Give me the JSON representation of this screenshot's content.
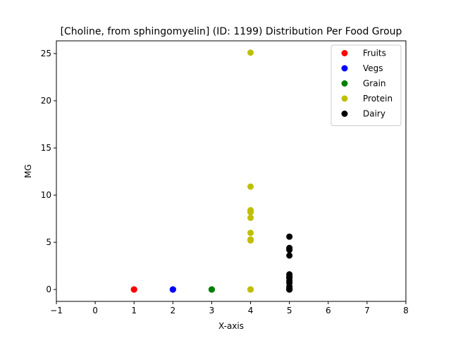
{
  "chart_data": {
    "type": "scatter",
    "title": "[Choline, from sphingomyelin] (ID: 1199) Distribution Per Food Group",
    "xlabel": "X-axis",
    "ylabel": "MG",
    "xlim": [
      -1,
      8
    ],
    "ylim": [
      -1.26,
      26.35
    ],
    "xticks": [
      -1,
      0,
      1,
      2,
      3,
      4,
      5,
      6,
      7,
      8
    ],
    "yticks": [
      0,
      5,
      10,
      15,
      20,
      25
    ],
    "grid": false,
    "legend_position": "top-right",
    "series": [
      {
        "name": "Fruits",
        "color": "#ff0000",
        "x": [
          1,
          1,
          1
        ],
        "y": [
          0,
          0,
          0
        ]
      },
      {
        "name": "Vegs",
        "color": "#0000ff",
        "x": [
          2,
          2,
          2
        ],
        "y": [
          0,
          0,
          0
        ]
      },
      {
        "name": "Grain",
        "color": "#008000",
        "x": [
          3,
          3,
          3
        ],
        "y": [
          0,
          0,
          0
        ]
      },
      {
        "name": "Protein",
        "color": "#bfbf00",
        "x": [
          4,
          4,
          4,
          4,
          4,
          4,
          4,
          4,
          4,
          4,
          4
        ],
        "y": [
          25.1,
          10.9,
          8.4,
          8.2,
          7.6,
          6.0,
          5.3,
          5.2,
          0,
          0,
          0
        ]
      },
      {
        "name": "Dairy",
        "color": "#000000",
        "x": [
          5,
          5,
          5,
          5,
          5,
          5,
          5,
          5,
          5,
          5,
          5,
          5,
          5,
          5,
          5,
          5
        ],
        "y": [
          5.6,
          4.4,
          4.3,
          4.2,
          3.6,
          1.6,
          1.4,
          1.3,
          1.2,
          0.9,
          0.7,
          0.3,
          0.1,
          0,
          0,
          0
        ]
      }
    ]
  }
}
